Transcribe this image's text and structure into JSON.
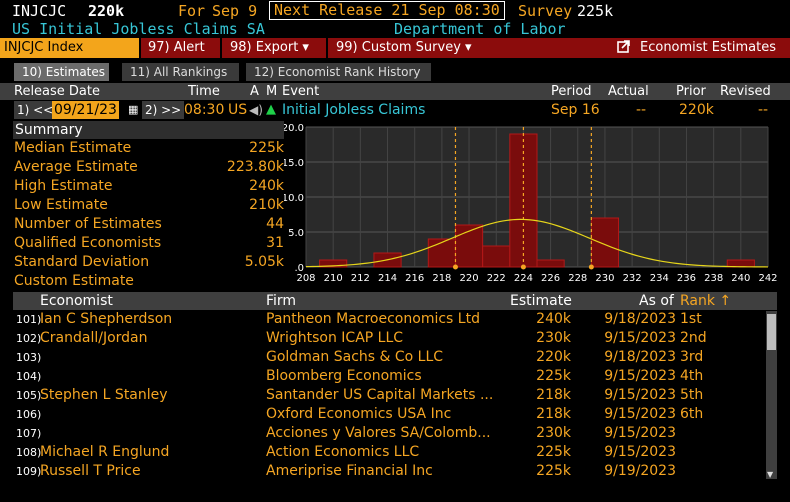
{
  "header": {
    "ticker": "INJCJC",
    "value": "220k",
    "for_label": "For",
    "for_date": "Sep 9",
    "next_release": "Next Release 21 Sep 08:30",
    "survey_label": "Survey",
    "survey_value": "225k",
    "title": "US Initial Jobless Claims SA",
    "source": "Department of Labor"
  },
  "menu": {
    "index": "INJCJC Index",
    "alert": "97) Alert",
    "export": "98) Export ▾",
    "custom_survey": "99) Custom Survey ▾",
    "economist_estimates": "Economist Estimates"
  },
  "tabs": [
    "10) Estimates",
    "11) All Rankings",
    "12) Economist Rank History"
  ],
  "release": {
    "headers": {
      "release_date": "Release Date",
      "time": "Time",
      "a": "A",
      "m": "M",
      "event": "Event",
      "period": "Period",
      "actual": "Actual",
      "prior": "Prior",
      "revised": "Revised"
    },
    "prev_btn": "1) <<",
    "date": "09/21/23",
    "next_btn": "2) >>",
    "time": "08:30",
    "country": "US",
    "event": "Initial Jobless Claims",
    "period": "Sep 16",
    "actual": "--",
    "prior": "220k",
    "revised": "--"
  },
  "summary": {
    "title": "Summary",
    "rows": [
      {
        "label": "Median Estimate",
        "value": "225k"
      },
      {
        "label": "Average Estimate",
        "value": "223.80k"
      },
      {
        "label": "High Estimate",
        "value": "240k"
      },
      {
        "label": "Low Estimate",
        "value": "210k"
      },
      {
        "label": "Number of Estimates",
        "value": "44"
      },
      {
        "label": "Qualified Economists",
        "value": "31"
      },
      {
        "label": "Standard Deviation",
        "value": "5.05k"
      },
      {
        "label": "Custom Estimate",
        "value": ""
      }
    ]
  },
  "chart_data": {
    "type": "bar",
    "x_ticks": [
      208,
      210,
      212,
      214,
      216,
      218,
      220,
      222,
      224,
      226,
      228,
      230,
      232,
      234,
      236,
      238,
      240,
      242
    ],
    "y_ticks": [
      ".0",
      "5.0",
      "10.0",
      "15.0",
      "20.0"
    ],
    "ylim": [
      0,
      20
    ],
    "xlim": [
      208,
      242
    ],
    "bars": [
      {
        "x": 210,
        "value": 1
      },
      {
        "x": 214,
        "value": 2
      },
      {
        "x": 218,
        "value": 4
      },
      {
        "x": 220,
        "value": 6
      },
      {
        "x": 222,
        "value": 3
      },
      {
        "x": 224,
        "value": 19
      },
      {
        "x": 226,
        "value": 1
      },
      {
        "x": 230,
        "value": 7
      },
      {
        "x": 240,
        "value": 1
      }
    ],
    "normal_curve": {
      "mean": 223.8,
      "sd": 5.05
    },
    "markers": [
      219,
      224,
      229
    ],
    "colors": {
      "bar": "#7a0c0c",
      "bar_edge": "#b31818",
      "curve": "#e6d51a",
      "marker": "#f5a623"
    }
  },
  "table": {
    "headers": {
      "economist": "Economist",
      "firm": "Firm",
      "estimate": "Estimate",
      "asof": "As of",
      "rank": "Rank ↑"
    },
    "rows": [
      {
        "num": "101)",
        "economist": "Ian C Shepherdson",
        "firm": "Pantheon Macroeconomics Ltd",
        "estimate": "240k",
        "asof": "9/18/2023",
        "rank": "1st"
      },
      {
        "num": "102)",
        "economist": "Crandall/Jordan",
        "firm": "Wrightson ICAP LLC",
        "estimate": "230k",
        "asof": "9/15/2023",
        "rank": "2nd"
      },
      {
        "num": "103)",
        "economist": "",
        "firm": "Goldman Sachs & Co LLC",
        "estimate": "220k",
        "asof": "9/18/2023",
        "rank": "3rd"
      },
      {
        "num": "104)",
        "economist": "",
        "firm": "Bloomberg Economics",
        "estimate": "225k",
        "asof": "9/15/2023",
        "rank": "4th"
      },
      {
        "num": "105)",
        "economist": "Stephen L Stanley",
        "firm": "Santander US Capital Markets ...",
        "estimate": "218k",
        "asof": "9/15/2023",
        "rank": "5th"
      },
      {
        "num": "106)",
        "economist": "",
        "firm": "Oxford Economics USA Inc",
        "estimate": "218k",
        "asof": "9/15/2023",
        "rank": "6th"
      },
      {
        "num": "107)",
        "economist": "",
        "firm": "Acciones y Valores SA/Colomb...",
        "estimate": "230k",
        "asof": "9/15/2023",
        "rank": ""
      },
      {
        "num": "108)",
        "economist": "Michael R Englund",
        "firm": "Action Economics LLC",
        "estimate": "225k",
        "asof": "9/15/2023",
        "rank": ""
      },
      {
        "num": "109)",
        "economist": "Russell T Price",
        "firm": "Ameriprise Financial Inc",
        "estimate": "225k",
        "asof": "9/19/2023",
        "rank": ""
      }
    ]
  }
}
